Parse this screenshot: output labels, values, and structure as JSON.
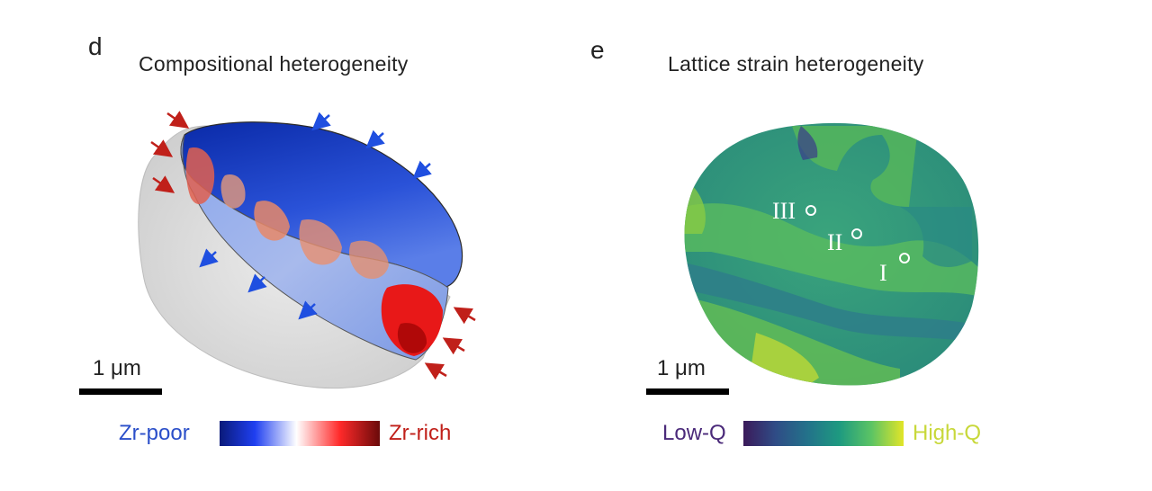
{
  "panel_d": {
    "letter": "d",
    "title": "Compositional heterogeneity",
    "scale_label": "1 μm",
    "colorbar": {
      "low_label": "Zr-poor",
      "high_label": "Zr-rich",
      "low_color": "#2b4fc9",
      "high_color": "#c0201a"
    }
  },
  "panel_e": {
    "letter": "e",
    "title": "Lattice strain heterogeneity",
    "scale_label": "1 μm",
    "markers": [
      {
        "label": "III"
      },
      {
        "label": "II"
      },
      {
        "label": "I"
      }
    ],
    "colorbar": {
      "low_label": "Low-Q",
      "high_label": "High-Q",
      "low_color": "#4b2a7a",
      "high_color": "#c8d83a"
    }
  }
}
